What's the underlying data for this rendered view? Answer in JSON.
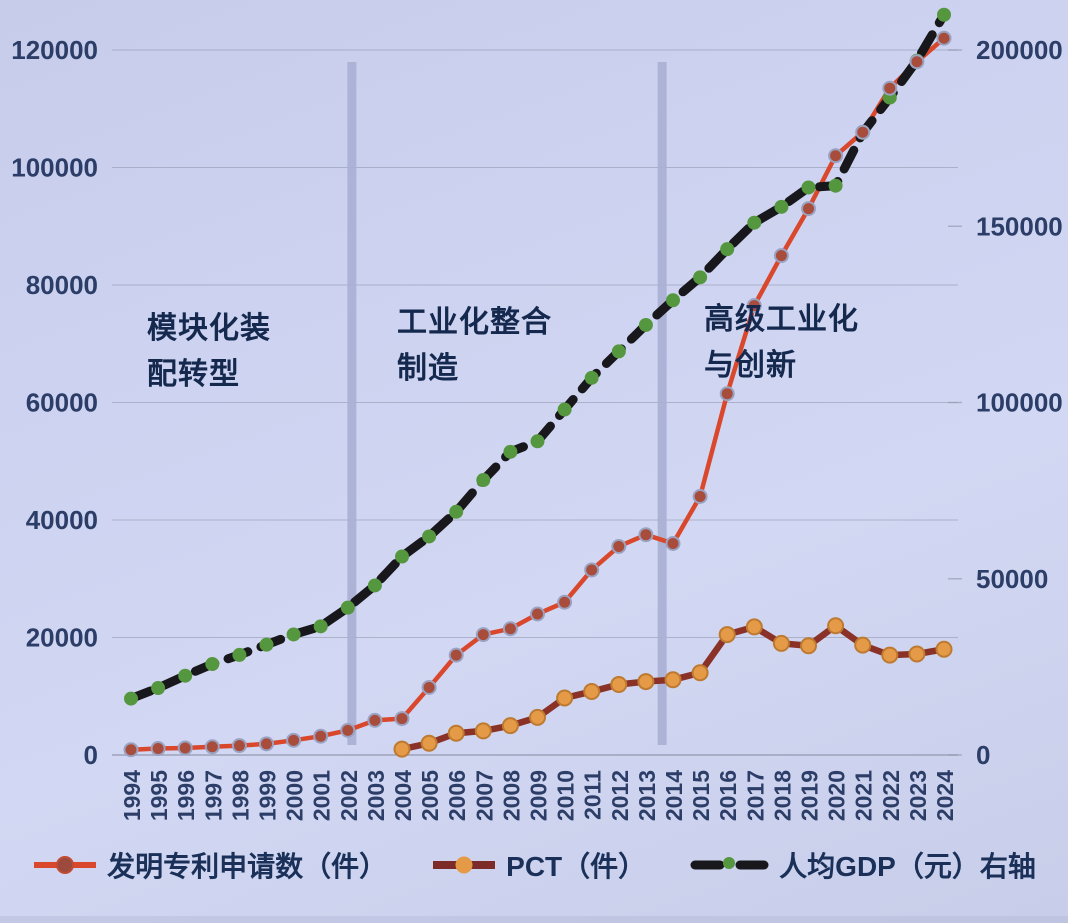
{
  "chart_data": {
    "type": "line",
    "title": "",
    "x": [
      1994,
      1995,
      1996,
      1997,
      1998,
      1999,
      2000,
      2001,
      2002,
      2003,
      2004,
      2005,
      2006,
      2007,
      2008,
      2009,
      2010,
      2011,
      2012,
      2013,
      2014,
      2015,
      2016,
      2017,
      2018,
      2019,
      2020,
      2021,
      2022,
      2023,
      2024
    ],
    "x_tick_labels": [
      "1994",
      "1995",
      "1996",
      "1997",
      "1998",
      "1999",
      "2000",
      "2001",
      "2002",
      "2003",
      "2004",
      "2005",
      "2006",
      "2007",
      "2008",
      "2009",
      "2010",
      "2011",
      "2012",
      "2013",
      "2014",
      "2015",
      "2016",
      "2017",
      "2018",
      "2019",
      "2020",
      "2021",
      "2022",
      "2023",
      "2024"
    ],
    "left_axis": {
      "range": [
        0,
        120000
      ],
      "ticks": [
        0,
        20000,
        40000,
        60000,
        80000,
        100000,
        120000
      ],
      "tick_labels": [
        "0",
        "20000",
        "40000",
        "60000",
        "80000",
        "100000",
        "120000"
      ]
    },
    "right_axis": {
      "range": [
        0,
        200000
      ],
      "ticks": [
        0,
        50000,
        100000,
        150000,
        200000
      ],
      "tick_labels": [
        "0",
        "50000",
        "100000",
        "150000",
        "200000"
      ]
    },
    "grid": true,
    "legend_position": "bottom",
    "series": [
      {
        "name": "发明专利申请数（件）",
        "axis": "left",
        "style": "solid",
        "color": "#d9482c",
        "marker_color": "#a84c3b",
        "marker_stroke": "#9aa2c2",
        "values": [
          900,
          1100,
          1200,
          1400,
          1600,
          1900,
          2500,
          3200,
          4200,
          5900,
          6200,
          11500,
          17000,
          20500,
          21500,
          24000,
          26000,
          31500,
          35500,
          37500,
          36000,
          44000,
          61500,
          76500,
          85000,
          93000,
          102000,
          106000,
          113500,
          118000,
          122000
        ]
      },
      {
        "name": "PCT（件）",
        "axis": "left",
        "style": "solid",
        "color": "#8a3128",
        "marker_color": "#e59a48",
        "marker_stroke": "#bd7a30",
        "values": [
          null,
          null,
          null,
          null,
          null,
          null,
          null,
          null,
          null,
          null,
          1000,
          2000,
          3700,
          4100,
          5000,
          6400,
          9700,
          10800,
          12000,
          12500,
          12800,
          14000,
          20500,
          21800,
          19000,
          18600,
          22000,
          18700,
          17000,
          17200,
          18000
        ]
      },
      {
        "name": "人均GDP（元）右轴",
        "axis": "right",
        "style": "dashed",
        "color": "#17171c",
        "marker_color": "#55973e",
        "marker_stroke": "#3f7a2d",
        "values": [
          16000,
          19000,
          22500,
          25800,
          28400,
          31300,
          34200,
          36500,
          41800,
          48100,
          56300,
          62000,
          69000,
          78000,
          86000,
          89000,
          98000,
          107000,
          114500,
          122000,
          129000,
          135500,
          143500,
          151000,
          155500,
          161000,
          161500,
          176500,
          186500,
          197000,
          210000
        ]
      }
    ],
    "phase_dividers": [
      2002.15,
      2013.6
    ],
    "annotations": [
      {
        "line1": "模块化装",
        "line2": "配转型"
      },
      {
        "line1": "工业化整合",
        "line2": "制造"
      },
      {
        "line1": "高级工业化",
        "line2": "与创新"
      }
    ],
    "colors": {
      "background": "#cdd3f0",
      "gridline": "#939ab0",
      "divider_bar": "#a8afd3",
      "axis_text": "#2c3e68",
      "annotation_text": "#15294f",
      "legend_text": "#1a3059"
    }
  }
}
